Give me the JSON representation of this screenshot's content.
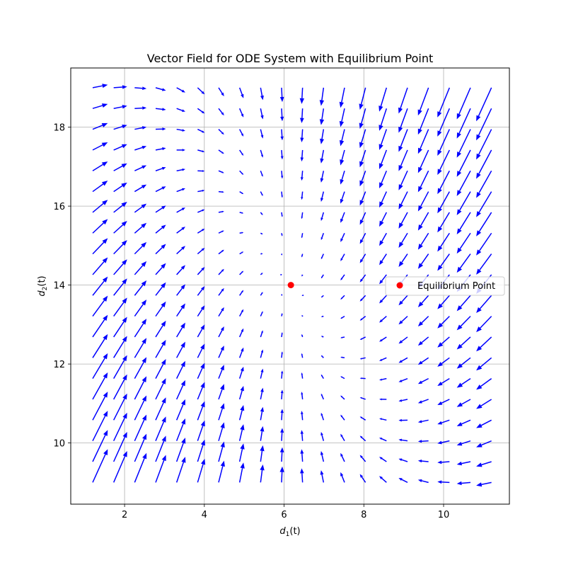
{
  "chart_data": {
    "type": "quiver",
    "title": "Vector Field for ODE System with Equilibrium Point",
    "xlabel": {
      "symbol": "d",
      "subscript": "1",
      "suffix": "(t)"
    },
    "ylabel": {
      "symbol": "d",
      "subscript": "2",
      "suffix": "(t)"
    },
    "xlim": [
      0.65,
      11.65
    ],
    "ylim": [
      8.45,
      19.5
    ],
    "xticks": [
      2,
      4,
      6,
      8,
      10
    ],
    "yticks": [
      10,
      12,
      14,
      16,
      18
    ],
    "grid": true,
    "field": {
      "x_range": [
        1.2,
        11.2
      ],
      "y_range": [
        9.0,
        19.0
      ],
      "n": 20,
      "a": 0.5,
      "b": 0.6,
      "color": "#0000ff"
    },
    "equilibrium": {
      "x": 6.17,
      "y": 14.0,
      "color": "#ff0000",
      "label": "Equilibrium Point"
    },
    "legend": {
      "location": "right",
      "entries": [
        "Equilibrium Point"
      ]
    }
  }
}
